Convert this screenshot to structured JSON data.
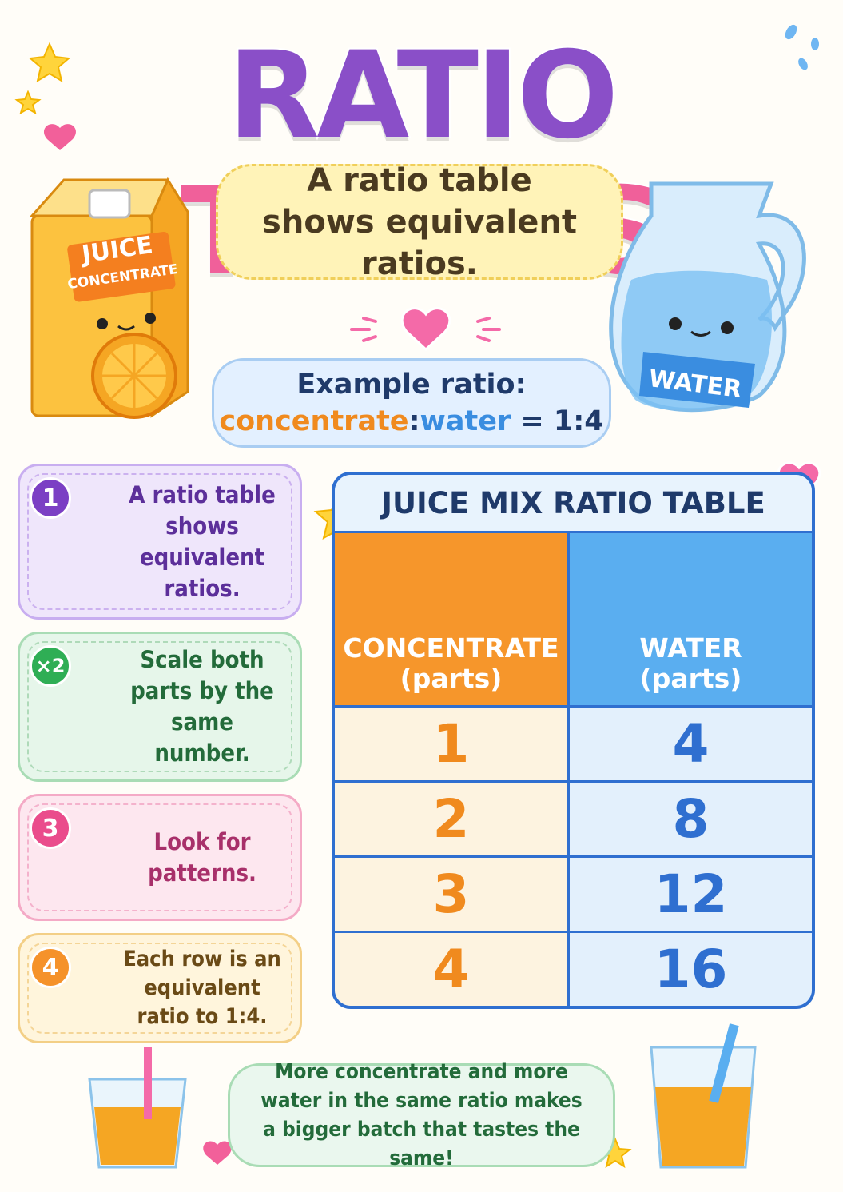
{
  "title": {
    "part1": "RATIO",
    "part2": "TABLES"
  },
  "intro": "A ratio table shows equivalent ratios.",
  "carton_label": {
    "line1": "JUICE",
    "line2": "CONCENTRATE"
  },
  "pitcher_label": "WATER",
  "example": {
    "heading": "Example ratio:",
    "left": "concentrate",
    "separator": ":",
    "right": "water",
    "result": "= 1:4"
  },
  "steps": [
    {
      "badge": "1",
      "text": "A ratio table shows equivalent ratios."
    },
    {
      "badge": "×2",
      "text": "Scale both parts by the same number."
    },
    {
      "badge": "3",
      "text": "Look for patterns."
    },
    {
      "badge": "4",
      "text": "Each row is an equivalent ratio to 1:4."
    }
  ],
  "table": {
    "title": "JUICE MIX RATIO TABLE",
    "headers": [
      {
        "name": "CONCENTRATE",
        "unit": "(parts)"
      },
      {
        "name": "WATER",
        "unit": "(parts)"
      }
    ],
    "rows": [
      [
        1,
        4
      ],
      [
        2,
        8
      ],
      [
        3,
        12
      ],
      [
        4,
        16
      ]
    ]
  },
  "footer": "More concentrate and more water in the same ratio makes a bigger batch that tastes the same!"
}
